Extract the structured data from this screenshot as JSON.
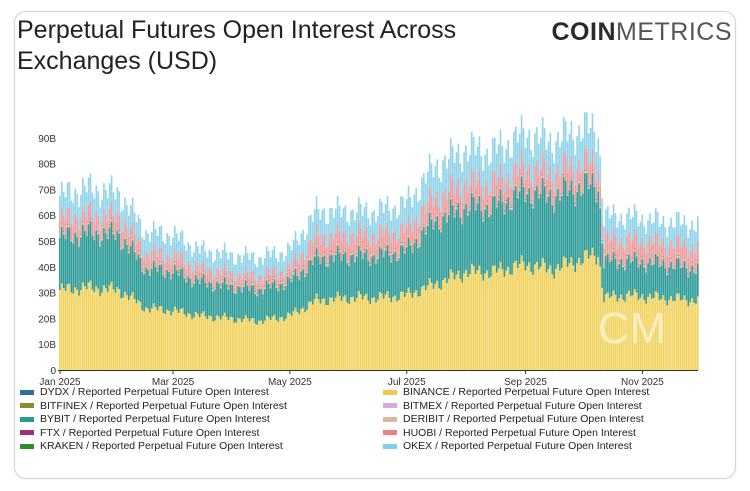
{
  "title": "Perpetual Futures Open Interest Across Exchanges (USD)",
  "logo": {
    "bold": "COIN",
    "light": "METRICS"
  },
  "watermark": "CM",
  "chart_data": {
    "type": "area",
    "stacked": true,
    "y_ticks": [
      "0",
      "10B",
      "20B",
      "30B",
      "40B",
      "50B",
      "60B",
      "70B",
      "80B",
      "90B"
    ],
    "ylim": [
      0,
      100
    ],
    "y_unit": "B USD",
    "x_ticks": [
      {
        "label": "Jan 2025",
        "day": 0
      },
      {
        "label": "Mar 2025",
        "day": 59
      },
      {
        "label": "May 2025",
        "day": 120
      },
      {
        "label": "Jul 2025",
        "day": 181
      },
      {
        "label": "Sep 2025",
        "day": 243
      },
      {
        "label": "Nov 2025",
        "day": 304
      }
    ],
    "xlim_days": [
      0,
      333
    ],
    "x_dates": [
      "2025-01-01",
      "2025-01-15",
      "2025-02-01",
      "2025-02-15",
      "2025-03-01",
      "2025-03-15",
      "2025-04-01",
      "2025-04-15",
      "2025-05-01",
      "2025-05-15",
      "2025-06-01",
      "2025-06-15",
      "2025-07-01",
      "2025-07-15",
      "2025-08-01",
      "2025-08-15",
      "2025-09-01",
      "2025-09-15",
      "2025-10-01",
      "2025-10-09",
      "2025-10-12",
      "2025-10-25",
      "2025-11-10",
      "2025-11-30"
    ],
    "x_days": [
      0,
      14,
      31,
      45,
      59,
      73,
      90,
      104,
      120,
      134,
      151,
      165,
      181,
      195,
      212,
      226,
      243,
      257,
      273,
      281,
      284,
      297,
      313,
      333
    ],
    "series": [
      {
        "name": "BINANCE",
        "color": "#f2d35f",
        "values": [
          31,
          32,
          31,
          24,
          23,
          21,
          20,
          19,
          21,
          27,
          28,
          28,
          29,
          33,
          38,
          38,
          41,
          39,
          43,
          45,
          28,
          29,
          28,
          27
        ]
      },
      {
        "name": "BYBIT",
        "color": "#2a9a97",
        "values": [
          20,
          21,
          21,
          15,
          15,
          13,
          12,
          12,
          13,
          16,
          16,
          16,
          17,
          24,
          25,
          25,
          28,
          28,
          28,
          26,
          14,
          13,
          13,
          12
        ]
      },
      {
        "name": "HUOBI",
        "color": "#f09a9c",
        "values": [
          6,
          6,
          6,
          5,
          5,
          4,
          4,
          4,
          4,
          7,
          7,
          7,
          7,
          8,
          8,
          8,
          8,
          8,
          8,
          7,
          7,
          7,
          7,
          7
        ]
      },
      {
        "name": "OKEX",
        "color": "#8fd4ea",
        "values": [
          9,
          10,
          9,
          8,
          8,
          7,
          7,
          7,
          7,
          10,
          9,
          9,
          10,
          12,
          13,
          12,
          13,
          12,
          13,
          13,
          9,
          9,
          8,
          9
        ]
      },
      {
        "name": "BITFINEX",
        "color": "#8c8c2a",
        "values": [
          0.3,
          0.3,
          0.3,
          0.3,
          0.3,
          0.3,
          0.3,
          0.3,
          0.3,
          0.3,
          0.3,
          0.3,
          0.3,
          0.3,
          0.3,
          0.3,
          0.3,
          0.3,
          0.3,
          0.3,
          0.3,
          0.3,
          0.3,
          0.3
        ]
      },
      {
        "name": "BITMEX",
        "color": "#d9a9e6",
        "values": [
          0.4,
          0.4,
          0.4,
          0.4,
          0.4,
          0.4,
          0.4,
          0.4,
          0.4,
          0.4,
          0.4,
          0.4,
          0.4,
          0.4,
          0.4,
          0.4,
          0.4,
          0.4,
          0.4,
          0.4,
          0.4,
          0.4,
          0.4,
          0.4
        ]
      },
      {
        "name": "DERIBIT",
        "color": "#d7b89c",
        "values": [
          0.5,
          0.5,
          0.5,
          0.5,
          0.5,
          0.5,
          0.5,
          0.5,
          0.5,
          0.5,
          0.5,
          0.5,
          0.5,
          0.5,
          0.5,
          0.5,
          0.5,
          0.5,
          0.5,
          0.5,
          0.5,
          0.5,
          0.5,
          0.5
        ]
      },
      {
        "name": "KRAKEN",
        "color": "#2e8b2e",
        "values": [
          0.2,
          0.2,
          0.2,
          0.2,
          0.2,
          0.2,
          0.2,
          0.2,
          0.2,
          0.2,
          0.2,
          0.2,
          0.2,
          0.2,
          0.2,
          0.2,
          0.2,
          0.2,
          0.2,
          0.2,
          0.2,
          0.2,
          0.2,
          0.2
        ]
      }
    ],
    "legend": [
      {
        "label": "DYDX / Reported Perpetual Future Open Interest",
        "color": "#2f6f9a"
      },
      {
        "label": "BINANCE / Reported Perpetual Future Open Interest",
        "color": "#f2c94c"
      },
      {
        "label": "BITFINEX / Reported Perpetual Future Open Interest",
        "color": "#8c8c2a"
      },
      {
        "label": "BITMEX / Reported Perpetual Future Open Interest",
        "color": "#d9a9e6"
      },
      {
        "label": "BYBIT / Reported Perpetual Future Open Interest",
        "color": "#2a9a97"
      },
      {
        "label": "DERIBIT / Reported Perpetual Future Open Interest",
        "color": "#d7b89c"
      },
      {
        "label": "FTX / Reported Perpetual Future Open Interest",
        "color": "#a0307a"
      },
      {
        "label": "HUOBI / Reported Perpetual Future Open Interest",
        "color": "#f07f83"
      },
      {
        "label": "KRAKEN / Reported Perpetual Future Open Interest",
        "color": "#2e8b2e"
      },
      {
        "label": "OKEX / Reported Perpetual Future Open Interest",
        "color": "#7fd0ea"
      }
    ],
    "legend_position": "bottom, two columns",
    "grid": false
  }
}
